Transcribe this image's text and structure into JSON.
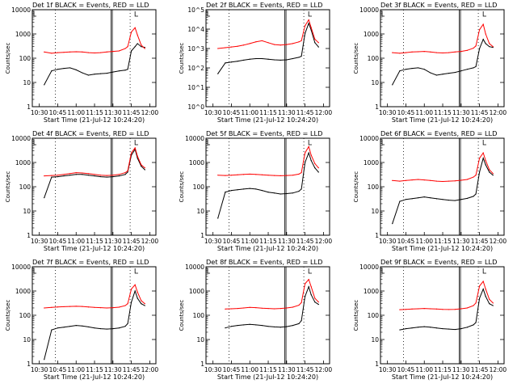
{
  "figure": {
    "xlabel": "Start Time (21-Jul-12 10:24:20)",
    "ylabel": "Counts/sec",
    "x_ticks": [
      "10:30",
      "10:45",
      "11:00",
      "11:15",
      "11:30",
      "11:45",
      "12:00"
    ],
    "x_tick_minutes": [
      30,
      45,
      60,
      75,
      90,
      105,
      120
    ],
    "xlim_minutes": [
      24.3,
      125
    ],
    "colors": {
      "events": "#000000",
      "lld": "#ff0000",
      "axes": "#000000"
    }
  },
  "chart_data": [
    {
      "type": "line",
      "title": "Det 1f BLACK = Events, RED = LLD",
      "ylim": [
        1,
        10000
      ],
      "yscale": "log",
      "y_ticks": [
        "1",
        "10",
        "100",
        "1000",
        "10000"
      ],
      "x": [
        "10:34",
        "10:40",
        "10:45",
        "10:50",
        "10:55",
        "11:00",
        "11:05",
        "11:10",
        "11:15",
        "11:20",
        "11:25",
        "11:30",
        "11:35",
        "11:40",
        "11:42",
        "11:45",
        "11:48",
        "11:50",
        "11:53",
        "11:56"
      ],
      "series": [
        {
          "name": "Events",
          "values": [
            8,
            30,
            35,
            38,
            40,
            33,
            25,
            20,
            22,
            23,
            24,
            27,
            30,
            32,
            35,
            200,
            300,
            400,
            300,
            280
          ]
        },
        {
          "name": "LLD",
          "values": [
            180,
            160,
            170,
            175,
            180,
            185,
            180,
            170,
            165,
            170,
            180,
            190,
            200,
            250,
            300,
            1200,
            1800,
            900,
            350,
            250
          ]
        }
      ]
    },
    {
      "type": "line",
      "title": "Det 2f BLACK = Events, RED = LLD",
      "ylim": [
        1,
        100000
      ],
      "yscale": "log",
      "y_ticks": [
        "10^0",
        "10^1",
        "10^2",
        "10^3",
        "10^4",
        "10^5"
      ],
      "x": [
        "10:34",
        "10:40",
        "10:45",
        "10:50",
        "10:55",
        "11:00",
        "11:05",
        "11:10",
        "11:15",
        "11:20",
        "11:25",
        "11:30",
        "11:35",
        "11:40",
        "11:42",
        "11:45",
        "11:48",
        "11:50",
        "11:53",
        "11:56"
      ],
      "series": [
        {
          "name": "Events",
          "values": [
            50,
            180,
            200,
            220,
            250,
            280,
            300,
            300,
            280,
            260,
            250,
            260,
            300,
            350,
            400,
            6000,
            20000,
            9000,
            2000,
            1200
          ]
        },
        {
          "name": "LLD",
          "values": [
            1000,
            1100,
            1200,
            1300,
            1500,
            1800,
            2200,
            2500,
            2000,
            1600,
            1500,
            1600,
            1800,
            2200,
            2500,
            15000,
            30000,
            12000,
            3000,
            2000
          ]
        }
      ]
    },
    {
      "type": "line",
      "title": "Det 3f BLACK = Events, RED = LLD",
      "ylim": [
        1,
        10000
      ],
      "yscale": "log",
      "y_ticks": [
        "1",
        "10",
        "100",
        "1000",
        "10000"
      ],
      "x": [
        "10:34",
        "10:40",
        "10:45",
        "10:50",
        "10:55",
        "11:00",
        "11:05",
        "11:10",
        "11:15",
        "11:20",
        "11:25",
        "11:30",
        "11:35",
        "11:40",
        "11:42",
        "11:45",
        "11:48",
        "11:50",
        "11:53",
        "11:56"
      ],
      "series": [
        {
          "name": "Events",
          "values": [
            8,
            30,
            35,
            38,
            40,
            35,
            25,
            20,
            22,
            24,
            26,
            30,
            35,
            40,
            45,
            250,
            600,
            400,
            300,
            280
          ]
        },
        {
          "name": "LLD",
          "values": [
            170,
            160,
            170,
            180,
            185,
            190,
            180,
            170,
            165,
            170,
            180,
            190,
            210,
            260,
            320,
            1500,
            2500,
            1000,
            400,
            300
          ]
        }
      ]
    },
    {
      "type": "line",
      "title": "Det 4f BLACK = Events, RED = LLD",
      "ylim": [
        1,
        10000
      ],
      "yscale": "log",
      "y_ticks": [
        "1",
        "10",
        "100",
        "1000",
        "10000"
      ],
      "x": [
        "10:34",
        "10:40",
        "10:45",
        "10:50",
        "10:55",
        "11:00",
        "11:05",
        "11:10",
        "11:15",
        "11:20",
        "11:25",
        "11:30",
        "11:35",
        "11:40",
        "11:42",
        "11:45",
        "11:48",
        "11:50",
        "11:53",
        "11:56"
      ],
      "series": [
        {
          "name": "Events",
          "values": [
            35,
            250,
            260,
            280,
            300,
            320,
            320,
            300,
            280,
            260,
            250,
            260,
            280,
            320,
            400,
            2000,
            3500,
            1500,
            700,
            500
          ]
        },
        {
          "name": "LLD",
          "values": [
            280,
            290,
            300,
            320,
            350,
            380,
            370,
            350,
            320,
            300,
            290,
            300,
            320,
            380,
            450,
            2500,
            4000,
            1800,
            800,
            600
          ]
        }
      ]
    },
    {
      "type": "line",
      "title": "Det 5f BLACK = Events, RED = LLD",
      "ylim": [
        1,
        10000
      ],
      "yscale": "log",
      "y_ticks": [
        "1",
        "10",
        "100",
        "1000",
        "10000"
      ],
      "x": [
        "10:34",
        "10:40",
        "10:45",
        "10:50",
        "10:55",
        "11:00",
        "11:05",
        "11:10",
        "11:15",
        "11:20",
        "11:25",
        "11:30",
        "11:35",
        "11:40",
        "11:42",
        "11:45",
        "11:48",
        "11:50",
        "11:53",
        "11:56"
      ],
      "series": [
        {
          "name": "Events",
          "values": [
            5,
            60,
            70,
            75,
            80,
            85,
            80,
            70,
            60,
            55,
            50,
            52,
            55,
            65,
            80,
            1000,
            2500,
            1200,
            600,
            400
          ]
        },
        {
          "name": "LLD",
          "values": [
            300,
            290,
            300,
            310,
            320,
            330,
            320,
            310,
            300,
            290,
            285,
            290,
            300,
            330,
            380,
            2500,
            4500,
            2000,
            900,
            600
          ]
        }
      ]
    },
    {
      "type": "line",
      "title": "Det 6f BLACK = Events, RED = LLD",
      "ylim": [
        1,
        10000
      ],
      "yscale": "log",
      "y_ticks": [
        "1",
        "10",
        "100",
        "1000",
        "10000"
      ],
      "x": [
        "10:34",
        "10:40",
        "10:45",
        "10:50",
        "10:55",
        "11:00",
        "11:05",
        "11:10",
        "11:15",
        "11:20",
        "11:25",
        "11:30",
        "11:35",
        "11:40",
        "11:42",
        "11:45",
        "11:48",
        "11:50",
        "11:53",
        "11:56"
      ],
      "series": [
        {
          "name": "Events",
          "values": [
            3,
            25,
            30,
            32,
            35,
            38,
            35,
            32,
            30,
            28,
            27,
            30,
            33,
            40,
            50,
            400,
            1500,
            800,
            400,
            300
          ]
        },
        {
          "name": "LLD",
          "values": [
            180,
            170,
            180,
            190,
            200,
            190,
            180,
            170,
            165,
            170,
            175,
            185,
            200,
            250,
            300,
            1500,
            2500,
            1200,
            500,
            350
          ]
        }
      ]
    },
    {
      "type": "line",
      "title": "Det 7f BLACK = Events, RED = LLD",
      "ylim": [
        1,
        10000
      ],
      "yscale": "log",
      "y_ticks": [
        "1",
        "10",
        "100",
        "1000",
        "10000"
      ],
      "x": [
        "10:34",
        "10:40",
        "10:45",
        "10:50",
        "10:55",
        "11:00",
        "11:05",
        "11:10",
        "11:15",
        "11:20",
        "11:25",
        "11:30",
        "11:35",
        "11:40",
        "11:42",
        "11:45",
        "11:48",
        "11:50",
        "11:53",
        "11:56"
      ],
      "series": [
        {
          "name": "Events",
          "values": [
            1.5,
            25,
            30,
            32,
            35,
            38,
            36,
            33,
            30,
            28,
            27,
            28,
            30,
            35,
            45,
            350,
            1000,
            500,
            300,
            250
          ]
        },
        {
          "name": "LLD",
          "values": [
            200,
            210,
            220,
            225,
            230,
            235,
            230,
            220,
            210,
            205,
            200,
            205,
            215,
            250,
            300,
            1200,
            1800,
            900,
            400,
            300
          ]
        }
      ]
    },
    {
      "type": "line",
      "title": "Det 8f BLACK = Events, RED = LLD",
      "ylim": [
        1,
        10000
      ],
      "yscale": "log",
      "y_ticks": [
        "1",
        "10",
        "100",
        "1000",
        "10000"
      ],
      "x": [
        "10:40",
        "10:45",
        "10:50",
        "10:55",
        "11:00",
        "11:05",
        "11:10",
        "11:15",
        "11:20",
        "11:25",
        "11:30",
        "11:35",
        "11:40",
        "11:42",
        "11:45",
        "11:48",
        "11:50",
        "11:53",
        "11:56"
      ],
      "series": [
        {
          "name": "Events",
          "values": [
            30,
            35,
            38,
            40,
            42,
            40,
            38,
            35,
            33,
            32,
            34,
            38,
            45,
            60,
            600,
            1500,
            700,
            350,
            280
          ]
        },
        {
          "name": "LLD",
          "values": [
            180,
            185,
            190,
            200,
            210,
            205,
            195,
            190,
            185,
            190,
            200,
            215,
            260,
            330,
            2000,
            3000,
            1500,
            500,
            350
          ]
        }
      ]
    },
    {
      "type": "line",
      "title": "Det 9f BLACK = Events, RED = LLD",
      "ylim": [
        1,
        10000
      ],
      "yscale": "log",
      "y_ticks": [
        "1",
        "10",
        "100",
        "1000",
        "10000"
      ],
      "x": [
        "10:40",
        "10:45",
        "10:50",
        "10:55",
        "11:00",
        "11:05",
        "11:10",
        "11:15",
        "11:20",
        "11:25",
        "11:30",
        "11:35",
        "11:40",
        "11:42",
        "11:45",
        "11:48",
        "11:50",
        "11:53",
        "11:56"
      ],
      "series": [
        {
          "name": "Events",
          "values": [
            25,
            28,
            30,
            32,
            34,
            32,
            30,
            28,
            27,
            26,
            28,
            32,
            40,
            50,
            500,
            1200,
            600,
            300,
            250
          ]
        },
        {
          "name": "LLD",
          "values": [
            170,
            175,
            180,
            185,
            190,
            185,
            180,
            175,
            172,
            175,
            185,
            200,
            250,
            320,
            1600,
            2500,
            1200,
            450,
            320
          ]
        }
      ]
    }
  ]
}
